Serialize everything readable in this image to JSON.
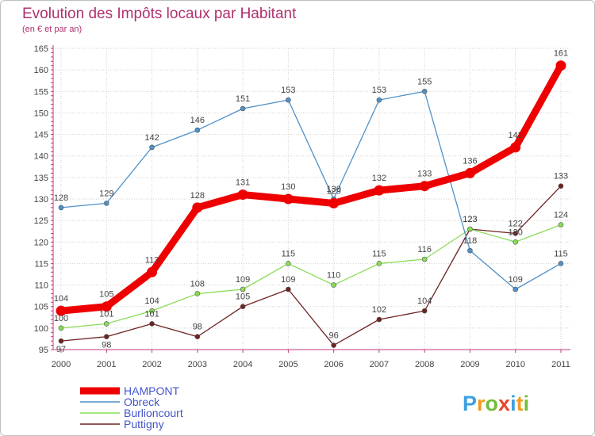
{
  "chart_data": {
    "type": "line",
    "title": "Evolution des Impôts locaux par Habitant",
    "subtitle": "(en € et par an)",
    "xlabel": "",
    "ylabel": "",
    "categories": [
      "2000",
      "2001",
      "2002",
      "2003",
      "2004",
      "2005",
      "2006",
      "2007",
      "2008",
      "2009",
      "2010",
      "2011"
    ],
    "ylim": [
      95,
      165
    ],
    "yticks": [
      95,
      100,
      105,
      110,
      115,
      120,
      125,
      130,
      135,
      140,
      145,
      150,
      155,
      160,
      165
    ],
    "grid": true,
    "legend_position": "bottom-left",
    "series": [
      {
        "name": "HAMPONT",
        "color": "#ee0000",
        "values": [
          104,
          105,
          113,
          128,
          131,
          130,
          129,
          132,
          133,
          136,
          142,
          161
        ],
        "labels": [
          "104",
          "105",
          "113",
          "128",
          "131",
          "130",
          "129",
          "132",
          "133",
          "136",
          "142",
          "161"
        ]
      },
      {
        "name": "Obreck",
        "color": "#4f91c9",
        "values": [
          128,
          129,
          142,
          146,
          151,
          153,
          130,
          153,
          155,
          118,
          109,
          115
        ],
        "labels": [
          "128",
          "129",
          "142",
          "146",
          "151",
          "153",
          "130",
          "153",
          "155",
          "118",
          "109",
          "115"
        ]
      },
      {
        "name": "Burlioncourt",
        "color": "#88dd55",
        "values": [
          100,
          101,
          104,
          108,
          109,
          115,
          110,
          115,
          116,
          123,
          120,
          124
        ],
        "labels": [
          "100",
          "101",
          "104",
          "108",
          "109",
          "115",
          "110",
          "115",
          "116",
          "123",
          "120",
          "124"
        ]
      },
      {
        "name": "Puttigny",
        "color": "#6e2222",
        "values": [
          97,
          98,
          101,
          98,
          105,
          109,
          96,
          102,
          104,
          123,
          122,
          133
        ],
        "labels": [
          "97",
          "98",
          "101",
          "98",
          "105",
          "109",
          "96",
          "102",
          "104",
          "123",
          "122",
          "133"
        ]
      }
    ]
  },
  "brand": {
    "letters": [
      "P",
      "r",
      "o",
      "x",
      "i",
      "t",
      "i"
    ],
    "colors": [
      "#3da0e0",
      "#f29a20",
      "#73be3a",
      "#e8452c",
      "#3da0e0",
      "#f29a20",
      "#73be3a"
    ]
  }
}
